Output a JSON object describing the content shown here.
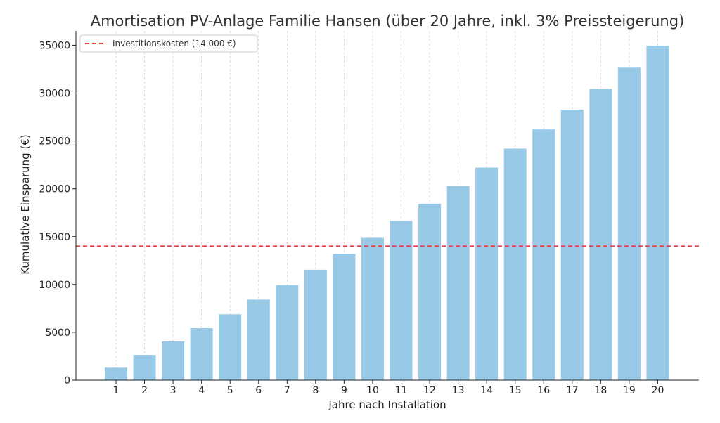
{
  "chart_data": {
    "type": "bar",
    "title": "Amortisation PV-Anlage Familie Hansen (über 20 Jahre, inkl. 3% Preissteigerung)",
    "xlabel": "Jahre nach Installation",
    "ylabel": "Kumulative Einsparung (€)",
    "categories": [
      "1",
      "2",
      "3",
      "4",
      "5",
      "6",
      "7",
      "8",
      "9",
      "10",
      "11",
      "12",
      "13",
      "14",
      "15",
      "16",
      "17",
      "18",
      "19",
      "20"
    ],
    "values": [
      1300,
      2640,
      4040,
      5430,
      6880,
      8420,
      9940,
      11540,
      13200,
      14880,
      16640,
      18440,
      20300,
      22220,
      24200,
      26200,
      28280,
      30440,
      32660,
      34960
    ],
    "ylim": [
      0,
      36500
    ],
    "yticks": [
      0,
      5000,
      10000,
      15000,
      20000,
      25000,
      30000,
      35000
    ],
    "reference_line": {
      "value": 14000,
      "label": "Investitionskosten (14.000 €)",
      "color": "#e8413c"
    },
    "bar_color": "#98c9e6",
    "grid": "vertical dashed",
    "legend_position": "top-left"
  }
}
